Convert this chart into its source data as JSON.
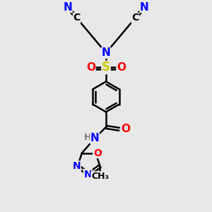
{
  "bg_color": "#e8e8e8",
  "atom_colors": {
    "C": "#000000",
    "N": "#0000ff",
    "O": "#ff0000",
    "S": "#cccc00",
    "H": "#7a7a7a"
  },
  "bond_color": "#000000",
  "bond_width": 1.8,
  "font_size_atom": 10
}
